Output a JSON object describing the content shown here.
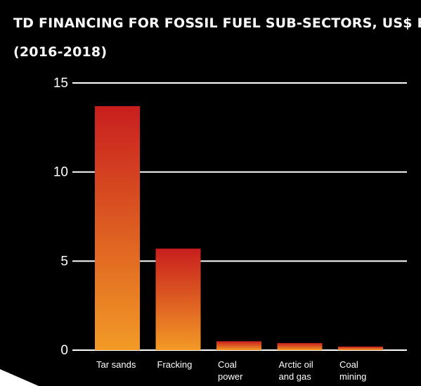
{
  "chart_data": {
    "type": "bar",
    "title_lines": [
      "TD financing for fossil fuel sub-sectors, US$ billions",
      "(2016-2018)"
    ],
    "categories": [
      [
        "Tar sands"
      ],
      [
        "Fracking"
      ],
      [
        "Coal",
        "power"
      ],
      [
        "Arctic oil",
        "and gas"
      ],
      [
        "Coal",
        "mining"
      ]
    ],
    "values": [
      13.7,
      5.7,
      0.5,
      0.4,
      0.2
    ],
    "yticks": [
      "0",
      "5",
      "10",
      "15"
    ],
    "ylim": [
      0,
      15
    ],
    "grid": true,
    "colors": {
      "background": "#000000",
      "text": "#ffffff",
      "grid": "#ffffff",
      "bar_top": "#c81e1e",
      "bar_bottom": "#f29a26"
    }
  }
}
